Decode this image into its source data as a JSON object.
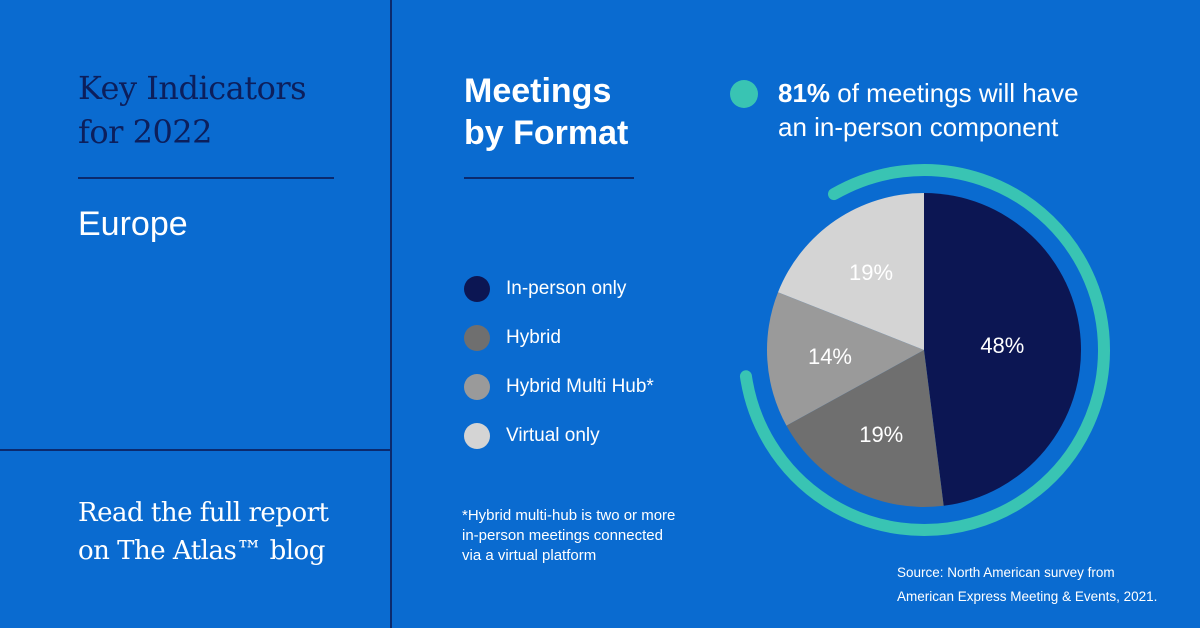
{
  "left_panel": {
    "title_line1": "Key Indicators",
    "title_line2": "for 2022",
    "region": "Europe",
    "report_line1": "Read the full report",
    "report_line2": "on The Atlas™ blog"
  },
  "chart_title_line1": "Meetings",
  "chart_title_line2": "by Format",
  "callout": {
    "bold": "81%",
    "rest_line1": " of meetings will have",
    "line2": "an in-person component",
    "value": 0.81,
    "color": "#39c4b3"
  },
  "footnote": "*Hybrid multi-hub is two or more\n in-person meetings connected\n via a virtual platform",
  "source": "Source: North American survey from\nAmerican Express Meeting & Events, 2021.",
  "colors": {
    "background": "#0a6bd0",
    "navy": "#0c1f5c",
    "teal": "#39c4b3"
  },
  "chart_data": {
    "type": "pie",
    "title": "Meetings by Format",
    "legend_position": "left",
    "slices": [
      {
        "label": "In-person only",
        "value": 48,
        "display": "48%",
        "color": "#0c1653"
      },
      {
        "label": "Hybrid",
        "value": 19,
        "display": "19%",
        "color": "#6f6f6f"
      },
      {
        "label": "Hybrid Multi Hub*",
        "value": 14,
        "display": "14%",
        "color": "#9a9a9a"
      },
      {
        "label": "Virtual only",
        "value": 19,
        "display": "19%",
        "color": "#d4d4d4"
      }
    ]
  }
}
